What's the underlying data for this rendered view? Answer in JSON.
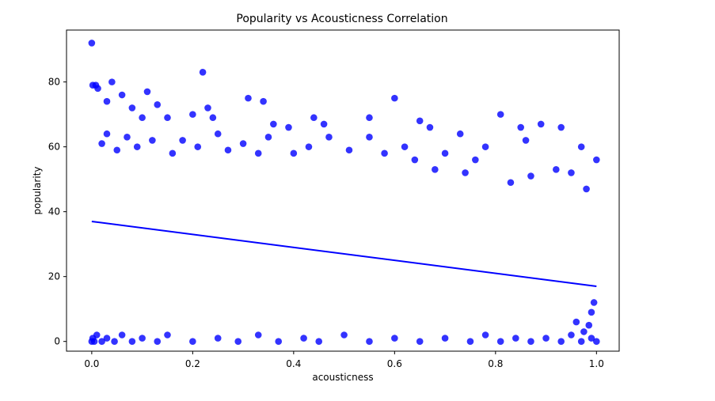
{
  "chart_data": {
    "type": "scatter",
    "title": "Popularity vs Acousticness Correlation",
    "xlabel": "acousticness",
    "ylabel": "popularity",
    "xlim": [
      -0.05,
      1.045
    ],
    "ylim": [
      -3,
      96
    ],
    "xticks": [
      0.0,
      0.2,
      0.4,
      0.6,
      0.8,
      1.0
    ],
    "xtick_labels": [
      "0.0",
      "0.2",
      "0.4",
      "0.6",
      "0.8",
      "1.0"
    ],
    "yticks": [
      0,
      20,
      40,
      60,
      80
    ],
    "ytick_labels": [
      "0",
      "20",
      "40",
      "60",
      "80"
    ],
    "grid": false,
    "point_color": "#0000ff",
    "point_opacity": 0.8,
    "trend_line": {
      "x": [
        0.0,
        1.0
      ],
      "y": [
        37,
        17
      ]
    },
    "points": [
      [
        0.0,
        92
      ],
      [
        0.002,
        79
      ],
      [
        0.008,
        79
      ],
      [
        0.012,
        78
      ],
      [
        0.22,
        83
      ],
      [
        0.04,
        80
      ],
      [
        0.11,
        77
      ],
      [
        0.03,
        74
      ],
      [
        0.06,
        76
      ],
      [
        0.31,
        75
      ],
      [
        0.34,
        74
      ],
      [
        0.6,
        75
      ],
      [
        0.55,
        69
      ],
      [
        0.65,
        68
      ],
      [
        0.67,
        66
      ],
      [
        0.81,
        70
      ],
      [
        0.85,
        66
      ],
      [
        0.89,
        67
      ],
      [
        0.93,
        66
      ],
      [
        0.44,
        69
      ],
      [
        0.46,
        67
      ],
      [
        0.39,
        66
      ],
      [
        0.36,
        67
      ],
      [
        0.2,
        70
      ],
      [
        0.23,
        72
      ],
      [
        0.24,
        69
      ],
      [
        0.15,
        69
      ],
      [
        0.13,
        73
      ],
      [
        0.08,
        72
      ],
      [
        0.1,
        69
      ],
      [
        0.0,
        0
      ],
      [
        0.002,
        1
      ],
      [
        0.005,
        0
      ],
      [
        0.01,
        2
      ],
      [
        0.02,
        0
      ],
      [
        0.03,
        1
      ],
      [
        0.045,
        0
      ],
      [
        0.06,
        2
      ],
      [
        0.08,
        0
      ],
      [
        0.1,
        1
      ],
      [
        0.13,
        0
      ],
      [
        0.15,
        2
      ],
      [
        0.2,
        0
      ],
      [
        0.25,
        1
      ],
      [
        0.29,
        0
      ],
      [
        0.33,
        2
      ],
      [
        0.37,
        0
      ],
      [
        0.42,
        1
      ],
      [
        0.45,
        0
      ],
      [
        0.5,
        2
      ],
      [
        0.55,
        0
      ],
      [
        0.6,
        1
      ],
      [
        0.65,
        0
      ],
      [
        0.7,
        1
      ],
      [
        0.75,
        0
      ],
      [
        0.78,
        2
      ],
      [
        0.81,
        0
      ],
      [
        0.84,
        1
      ],
      [
        0.87,
        0
      ],
      [
        0.9,
        1
      ],
      [
        0.93,
        0
      ],
      [
        0.95,
        2
      ],
      [
        0.97,
        0
      ],
      [
        0.99,
        1
      ],
      [
        1.0,
        0
      ],
      [
        0.985,
        5
      ],
      [
        0.99,
        9
      ],
      [
        0.975,
        3
      ],
      [
        0.96,
        6
      ],
      [
        0.995,
        12
      ],
      [
        1.0,
        56
      ],
      [
        0.97,
        60
      ],
      [
        0.95,
        52
      ],
      [
        0.98,
        47
      ],
      [
        0.92,
        53
      ],
      [
        0.86,
        62
      ],
      [
        0.87,
        51
      ],
      [
        0.83,
        49
      ],
      [
        0.78,
        60
      ],
      [
        0.76,
        56
      ],
      [
        0.73,
        64
      ],
      [
        0.74,
        52
      ],
      [
        0.7,
        58
      ],
      [
        0.68,
        53
      ],
      [
        0.64,
        56
      ],
      [
        0.62,
        60
      ],
      [
        0.58,
        58
      ],
      [
        0.55,
        63
      ],
      [
        0.51,
        59
      ],
      [
        0.47,
        63
      ],
      [
        0.43,
        60
      ],
      [
        0.4,
        58
      ],
      [
        0.35,
        63
      ],
      [
        0.33,
        58
      ],
      [
        0.3,
        61
      ],
      [
        0.27,
        59
      ],
      [
        0.25,
        64
      ],
      [
        0.21,
        60
      ],
      [
        0.18,
        62
      ],
      [
        0.16,
        58
      ],
      [
        0.12,
        62
      ],
      [
        0.09,
        60
      ],
      [
        0.07,
        63
      ],
      [
        0.05,
        59
      ],
      [
        0.03,
        64
      ],
      [
        0.02,
        61
      ]
    ]
  }
}
